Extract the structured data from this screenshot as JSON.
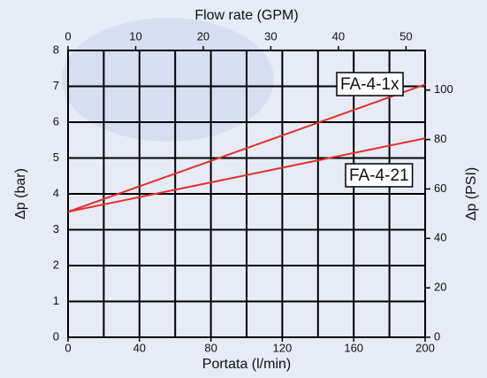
{
  "chart_data": {
    "type": "line",
    "xlabel": "Portata (l/min)",
    "x2label": "Flow rate (GPM)",
    "ylabel": "Δp (bar)",
    "y2label": "Δp (PSI)",
    "x": [
      0,
      200
    ],
    "series": [
      {
        "name": "FA-4-1x",
        "color": "#e3302e",
        "values": [
          3.5,
          7.05
        ]
      },
      {
        "name": "FA-4-21",
        "color": "#e3302e",
        "values": [
          3.5,
          5.55
        ]
      }
    ],
    "xlim": [
      0,
      200
    ],
    "xticks": [
      0,
      40,
      80,
      120,
      160,
      200
    ],
    "xgrid": [
      0,
      20,
      40,
      60,
      80,
      100,
      120,
      140,
      160,
      180,
      200
    ],
    "x2lim": [
      0,
      52.83
    ],
    "x2ticks": [
      0,
      10,
      20,
      30,
      40,
      50
    ],
    "ylim": [
      0,
      8
    ],
    "yticks": [
      0,
      1,
      2,
      3,
      4,
      5,
      6,
      7,
      8
    ],
    "y2lim": [
      0,
      116.03
    ],
    "y2ticks": [
      0,
      20,
      40,
      60,
      80,
      100
    ],
    "grid": true
  }
}
